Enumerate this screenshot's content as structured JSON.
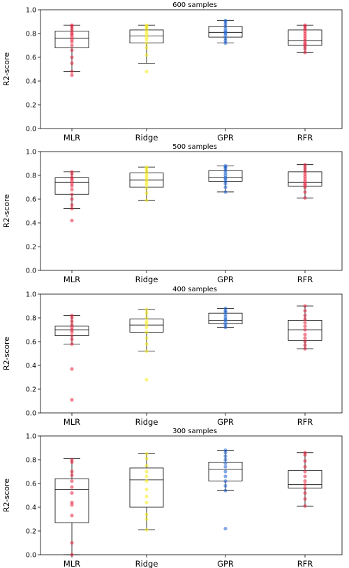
{
  "colors": {
    "MLR": "#e8203c",
    "Ridge": "#f5ec18",
    "GPR": "#1f64d2",
    "RFR": "#e8203c"
  },
  "chart_data": [
    {
      "type": "box",
      "title": "600 samples",
      "ylabel": "R2-score",
      "ylim": [
        0,
        1
      ],
      "yticks": [
        "0.0",
        "0.2",
        "0.4",
        "0.6",
        "0.8",
        "1.0"
      ],
      "categories": [
        "MLR",
        "Ridge",
        "GPR",
        "RFR"
      ],
      "boxes": [
        {
          "name": "MLR",
          "whisker_low": 0.48,
          "q1": 0.68,
          "median": 0.76,
          "q3": 0.82,
          "whisker_high": 0.87,
          "points": [
            0.45,
            0.48,
            0.55,
            0.6,
            0.66,
            0.7,
            0.73,
            0.75,
            0.77,
            0.79,
            0.8,
            0.82,
            0.84,
            0.86,
            0.87
          ]
        },
        {
          "name": "Ridge",
          "whisker_low": 0.55,
          "q1": 0.72,
          "median": 0.78,
          "q3": 0.83,
          "whisker_high": 0.87,
          "points": [
            0.48,
            0.62,
            0.68,
            0.72,
            0.75,
            0.77,
            0.79,
            0.81,
            0.83,
            0.85,
            0.86,
            0.87
          ]
        },
        {
          "name": "GPR",
          "whisker_low": 0.72,
          "q1": 0.77,
          "median": 0.81,
          "q3": 0.86,
          "whisker_high": 0.91,
          "points": [
            0.72,
            0.74,
            0.76,
            0.78,
            0.8,
            0.81,
            0.82,
            0.84,
            0.86,
            0.88,
            0.9,
            0.91
          ]
        },
        {
          "name": "RFR",
          "whisker_low": 0.64,
          "q1": 0.7,
          "median": 0.74,
          "q3": 0.83,
          "whisker_high": 0.87,
          "points": [
            0.64,
            0.67,
            0.69,
            0.71,
            0.72,
            0.74,
            0.76,
            0.78,
            0.8,
            0.82,
            0.84,
            0.86,
            0.87
          ]
        }
      ]
    },
    {
      "type": "box",
      "title": "500 samples",
      "ylabel": "R2-score",
      "ylim": [
        0,
        1
      ],
      "yticks": [
        "0.0",
        "0.2",
        "0.4",
        "0.6",
        "0.8",
        "1.0"
      ],
      "categories": [
        "MLR",
        "Ridge",
        "GPR",
        "RFR"
      ],
      "boxes": [
        {
          "name": "MLR",
          "whisker_low": 0.52,
          "q1": 0.64,
          "median": 0.74,
          "q3": 0.78,
          "whisker_high": 0.83,
          "points": [
            0.42,
            0.52,
            0.55,
            0.6,
            0.64,
            0.68,
            0.71,
            0.73,
            0.75,
            0.77,
            0.78,
            0.81,
            0.83
          ]
        },
        {
          "name": "Ridge",
          "whisker_low": 0.59,
          "q1": 0.7,
          "median": 0.76,
          "q3": 0.82,
          "whisker_high": 0.87,
          "points": [
            0.59,
            0.65,
            0.69,
            0.72,
            0.74,
            0.76,
            0.78,
            0.8,
            0.82,
            0.84,
            0.86,
            0.87
          ]
        },
        {
          "name": "GPR",
          "whisker_low": 0.66,
          "q1": 0.75,
          "median": 0.78,
          "q3": 0.84,
          "whisker_high": 0.88,
          "points": [
            0.66,
            0.7,
            0.73,
            0.75,
            0.77,
            0.78,
            0.8,
            0.82,
            0.84,
            0.86,
            0.87,
            0.88
          ]
        },
        {
          "name": "RFR",
          "whisker_low": 0.61,
          "q1": 0.71,
          "median": 0.74,
          "q3": 0.83,
          "whisker_high": 0.89,
          "points": [
            0.61,
            0.66,
            0.7,
            0.72,
            0.73,
            0.75,
            0.77,
            0.79,
            0.81,
            0.83,
            0.85,
            0.87,
            0.89
          ]
        }
      ]
    },
    {
      "type": "box",
      "title": "400 samples",
      "ylabel": "R2-score",
      "ylim": [
        0,
        1
      ],
      "yticks": [
        "0.0",
        "0.2",
        "0.4",
        "0.6",
        "0.8",
        "1.0"
      ],
      "categories": [
        "MLR",
        "Ridge",
        "GPR",
        "RFR"
      ],
      "boxes": [
        {
          "name": "MLR",
          "whisker_low": 0.58,
          "q1": 0.65,
          "median": 0.7,
          "q3": 0.73,
          "whisker_high": 0.82,
          "points": [
            0.11,
            0.37,
            0.58,
            0.62,
            0.65,
            0.68,
            0.7,
            0.72,
            0.74,
            0.77,
            0.8,
            0.82
          ]
        },
        {
          "name": "Ridge",
          "whisker_low": 0.52,
          "q1": 0.68,
          "median": 0.74,
          "q3": 0.79,
          "whisker_high": 0.87,
          "points": [
            0.28,
            0.52,
            0.58,
            0.63,
            0.68,
            0.72,
            0.75,
            0.77,
            0.8,
            0.84,
            0.87
          ]
        },
        {
          "name": "GPR",
          "whisker_low": 0.72,
          "q1": 0.75,
          "median": 0.78,
          "q3": 0.84,
          "whisker_high": 0.88,
          "points": [
            0.72,
            0.74,
            0.76,
            0.78,
            0.79,
            0.81,
            0.83,
            0.85,
            0.86,
            0.88
          ]
        },
        {
          "name": "RFR",
          "whisker_low": 0.54,
          "q1": 0.61,
          "median": 0.7,
          "q3": 0.78,
          "whisker_high": 0.9,
          "points": [
            0.54,
            0.57,
            0.6,
            0.63,
            0.66,
            0.7,
            0.73,
            0.76,
            0.79,
            0.82,
            0.86,
            0.9
          ]
        }
      ]
    },
    {
      "type": "box",
      "title": "300 samples",
      "ylabel": "R2-score",
      "ylim": [
        0,
        1
      ],
      "yticks": [
        "0.0",
        "0.2",
        "0.4",
        "0.6",
        "0.8",
        "1.0"
      ],
      "categories": [
        "MLR",
        "Ridge",
        "GPR",
        "RFR"
      ],
      "boxes": [
        {
          "name": "MLR",
          "whisker_low": 0.0,
          "q1": 0.27,
          "median": 0.55,
          "q3": 0.64,
          "whisker_high": 0.81,
          "points": [
            0.0,
            0.1,
            0.33,
            0.42,
            0.44,
            0.52,
            0.57,
            0.62,
            0.67,
            0.7,
            0.78,
            0.8
          ]
        },
        {
          "name": "Ridge",
          "whisker_low": 0.21,
          "q1": 0.4,
          "median": 0.63,
          "q3": 0.73,
          "whisker_high": 0.85,
          "points": [
            0.21,
            0.3,
            0.34,
            0.44,
            0.49,
            0.55,
            0.62,
            0.66,
            0.7,
            0.75,
            0.81,
            0.85
          ]
        },
        {
          "name": "GPR",
          "whisker_low": 0.54,
          "q1": 0.62,
          "median": 0.72,
          "q3": 0.78,
          "whisker_high": 0.88,
          "points": [
            0.22,
            0.54,
            0.58,
            0.62,
            0.66,
            0.7,
            0.74,
            0.77,
            0.8,
            0.83,
            0.86,
            0.88
          ]
        },
        {
          "name": "RFR",
          "whisker_low": 0.41,
          "q1": 0.56,
          "median": 0.59,
          "q3": 0.71,
          "whisker_high": 0.86,
          "points": [
            0.41,
            0.47,
            0.52,
            0.56,
            0.59,
            0.62,
            0.66,
            0.7,
            0.74,
            0.79,
            0.84,
            0.86
          ]
        }
      ]
    }
  ]
}
